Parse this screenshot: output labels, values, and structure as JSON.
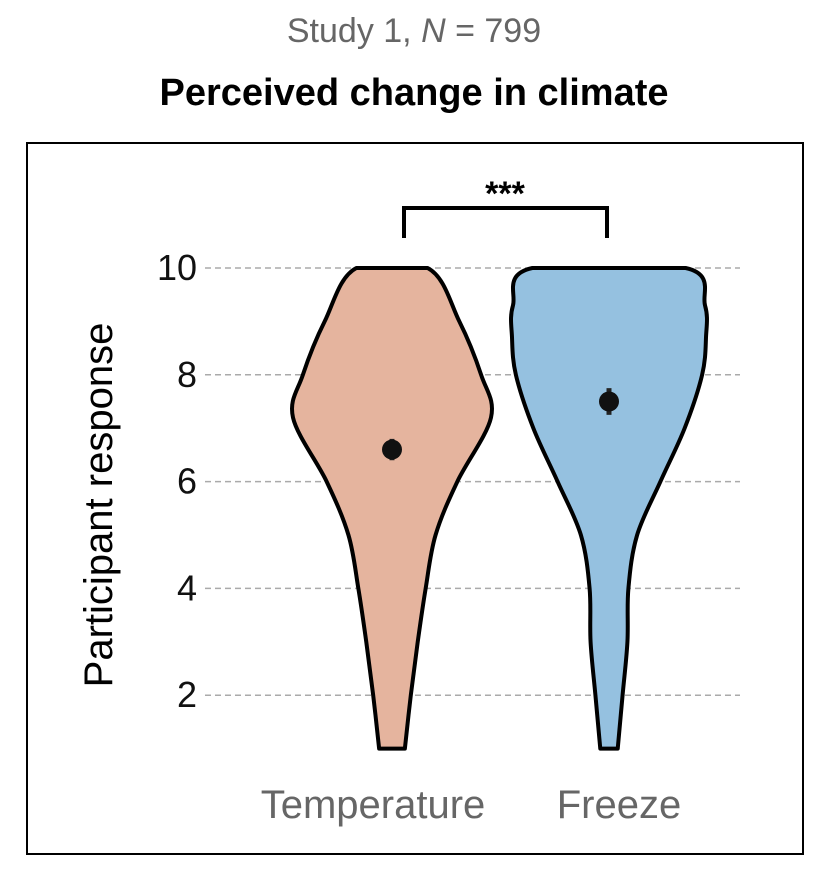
{
  "header": {
    "subtitle_prefix": "Study 1, ",
    "subtitle_n": "N",
    "subtitle_suffix": " = 799",
    "title": "Perceived change in climate"
  },
  "chart_data": {
    "type": "violin",
    "title": "Perceived change in climate",
    "subtitle": "Study 1, N = 799",
    "xlabel": "",
    "ylabel": "Participant response",
    "ylim": [
      1,
      10
    ],
    "yticks": [
      2,
      4,
      6,
      8,
      10
    ],
    "ytick_labels": [
      "2",
      "4",
      "6",
      "8",
      "10"
    ],
    "grid": "horizontal dashed",
    "significance": {
      "label": "***",
      "between": [
        "Temperature",
        "Freeze"
      ]
    },
    "categories": [
      "Temperature",
      "Freeze"
    ],
    "series": [
      {
        "name": "Temperature",
        "color": "#e5b49e",
        "mean": 6.6,
        "ci": [
          6.4,
          6.8
        ],
        "density_y": [
          1,
          2,
          3,
          4,
          5,
          6,
          7.2,
          8,
          9,
          10
        ],
        "density_rel": [
          0.13,
          0.19,
          0.26,
          0.34,
          0.44,
          0.66,
          1.0,
          0.9,
          0.68,
          0.36
        ]
      },
      {
        "name": "Freeze",
        "color": "#95c1e0",
        "mean": 7.5,
        "ci": [
          7.25,
          7.75
        ],
        "density_y": [
          1,
          2,
          3,
          4,
          5,
          6,
          7,
          8,
          8.7,
          9.3,
          10
        ],
        "density_rel": [
          0.09,
          0.14,
          0.19,
          0.2,
          0.29,
          0.53,
          0.78,
          0.96,
          1.0,
          0.99,
          0.79
        ]
      }
    ]
  }
}
